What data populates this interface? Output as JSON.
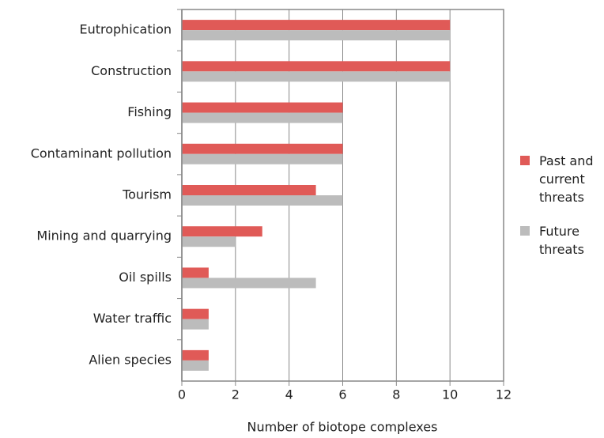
{
  "chart_data": {
    "type": "bar",
    "orientation": "horizontal",
    "xlabel": "Number of biotope complexes",
    "categories": [
      "Eutrophication",
      "Construction",
      "Fishing",
      "Contaminant pollution",
      "Tourism",
      "Mining and quarrying",
      "Oil spills",
      "Water traffic",
      "Alien species"
    ],
    "series": [
      {
        "name": "Past and current threats",
        "color": "#e05a57",
        "values": [
          10,
          10,
          6,
          6,
          5,
          3,
          1,
          1,
          1
        ]
      },
      {
        "name": "Future threats",
        "color": "#bcbcbc",
        "values": [
          10,
          10,
          6,
          6,
          6,
          2,
          5,
          1,
          1
        ]
      }
    ],
    "xlim": [
      0,
      12
    ],
    "xticks": [
      0,
      2,
      4,
      6,
      8,
      10,
      12
    ],
    "grid": true,
    "legend": "right"
  }
}
